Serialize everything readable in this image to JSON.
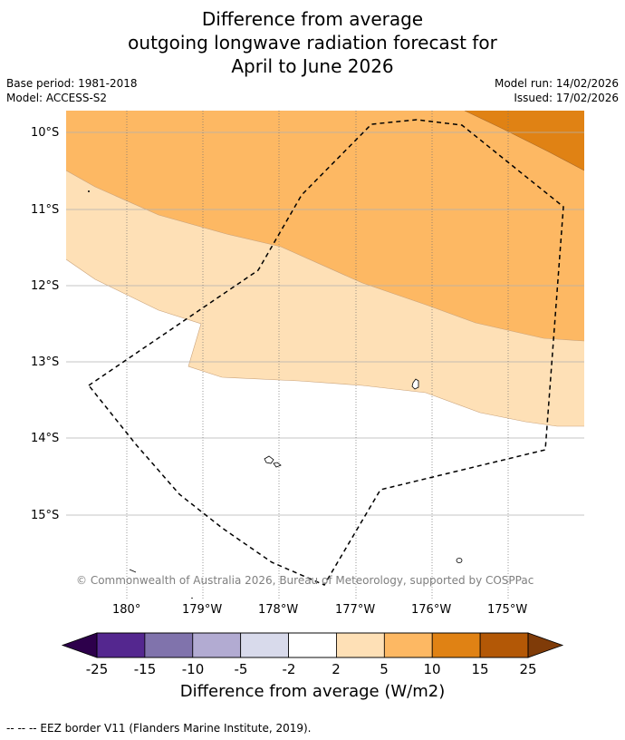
{
  "title": {
    "line1": "Difference from average",
    "line2": "outgoing longwave radiation forecast for",
    "line3": "April to June 2026"
  },
  "meta": {
    "base_period": "Base period: 1981-2018",
    "model": "Model: ACCESS-S2",
    "model_run": "Model run: 14/02/2026",
    "issued": "Issued: 17/02/2026"
  },
  "map": {
    "lat_labels": [
      "10°S",
      "11°S",
      "12°S",
      "13°S",
      "14°S",
      "15°S"
    ],
    "lon_labels": [
      "180°",
      "179°W",
      "178°W",
      "177°W",
      "176°W",
      "175°W"
    ],
    "copyright": "© Commonwealth of Australia 2026, Bureau of Meteorology, supported by COSPPac"
  },
  "colorbar": {
    "ticks": [
      "-25",
      "-15",
      "-10",
      "-5",
      "-2",
      "2",
      "5",
      "10",
      "15",
      "25"
    ],
    "colors": [
      "#54278f",
      "#8073ac",
      "#b2abd2",
      "#d8daeb",
      "#ffffff",
      "#fee0b6",
      "#fdb863",
      "#e08214",
      "#b35806"
    ],
    "under_color": "#2d004b",
    "over_color": "#7f3b08",
    "label": "Difference from average (W/m2)"
  },
  "legend": {
    "eez": "--  --  -- EEZ border V11 (Flanders Marine Institute, 2019)."
  }
}
